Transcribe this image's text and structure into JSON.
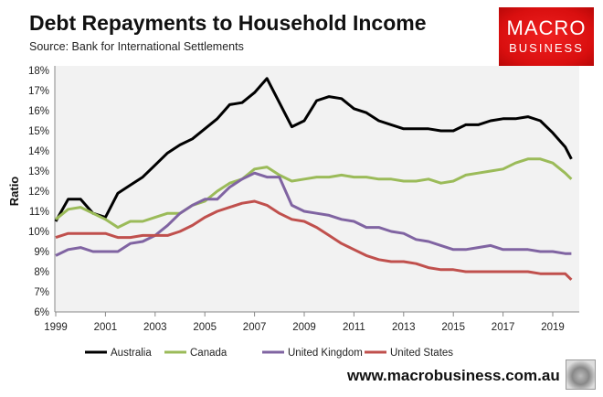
{
  "header": {
    "title": "Debt Repayments to Household Income",
    "subtitle": "Source: Bank for International Settlements"
  },
  "logo": {
    "line1": "MACRO",
    "line2": "BUSINESS",
    "color": "#e01818"
  },
  "footer": {
    "url": "www.macrobusiness.com.au",
    "mascot_icon": "wolf-icon"
  },
  "chart_data": {
    "type": "line",
    "title": "Debt Repayments to Household Income",
    "ylabel": "Ratio",
    "xlabel": "",
    "xlim": [
      1999,
      2020.1
    ],
    "ylim": [
      6,
      18
    ],
    "x_ticks": [
      "1999",
      "2001",
      "2003",
      "2005",
      "2007",
      "2009",
      "2011",
      "2013",
      "2015",
      "2017",
      "2019"
    ],
    "y_ticks": [
      "6%",
      "7%",
      "8%",
      "9%",
      "10%",
      "11%",
      "12%",
      "13%",
      "14%",
      "15%",
      "16%",
      "17%",
      "18%"
    ],
    "grid": false,
    "legend": "bottom",
    "x": [
      1999,
      1999.5,
      2000,
      2000.5,
      2001,
      2001.5,
      2002,
      2002.5,
      2003,
      2003.5,
      2004,
      2004.5,
      2005,
      2005.5,
      2006,
      2006.5,
      2007,
      2007.5,
      2008,
      2008.5,
      2009,
      2009.5,
      2010,
      2010.5,
      2011,
      2011.5,
      2012,
      2012.5,
      2013,
      2013.5,
      2014,
      2014.5,
      2015,
      2015.5,
      2016,
      2016.5,
      2017,
      2017.5,
      2018,
      2018.5,
      2019,
      2019.5,
      2019.75
    ],
    "series": [
      {
        "name": "Australia",
        "color": "#000000",
        "values": [
          10.5,
          11.6,
          11.6,
          10.9,
          10.7,
          11.9,
          12.3,
          12.7,
          13.3,
          13.9,
          14.3,
          14.6,
          15.1,
          15.6,
          16.3,
          16.4,
          16.9,
          17.6,
          16.4,
          15.2,
          15.5,
          16.5,
          16.7,
          16.6,
          16.1,
          15.9,
          15.5,
          15.3,
          15.1,
          15.1,
          15.1,
          15.0,
          15.0,
          15.3,
          15.3,
          15.5,
          15.6,
          15.6,
          15.7,
          15.5,
          14.9,
          14.2,
          13.6
        ]
      },
      {
        "name": "Canada",
        "color": "#9bbb59",
        "values": [
          10.6,
          11.1,
          11.2,
          10.9,
          10.6,
          10.2,
          10.5,
          10.5,
          10.7,
          10.9,
          10.9,
          11.3,
          11.5,
          12.0,
          12.4,
          12.6,
          13.1,
          13.2,
          12.8,
          12.5,
          12.6,
          12.7,
          12.7,
          12.8,
          12.7,
          12.7,
          12.6,
          12.6,
          12.5,
          12.5,
          12.6,
          12.4,
          12.5,
          12.8,
          12.9,
          13.0,
          13.1,
          13.4,
          13.6,
          13.6,
          13.4,
          12.9,
          12.6
        ]
      },
      {
        "name": "United Kingdom",
        "color": "#8064a2",
        "values": [
          8.8,
          9.1,
          9.2,
          9.0,
          9.0,
          9.0,
          9.4,
          9.5,
          9.8,
          10.3,
          10.9,
          11.3,
          11.6,
          11.6,
          12.2,
          12.6,
          12.9,
          12.7,
          12.7,
          11.3,
          11.0,
          10.9,
          10.8,
          10.6,
          10.5,
          10.2,
          10.2,
          10.0,
          9.9,
          9.6,
          9.5,
          9.3,
          9.1,
          9.1,
          9.2,
          9.3,
          9.1,
          9.1,
          9.1,
          9.0,
          9.0,
          8.9,
          8.9
        ]
      },
      {
        "name": "United States",
        "color": "#c0504d",
        "values": [
          9.7,
          9.9,
          9.9,
          9.9,
          9.9,
          9.7,
          9.7,
          9.8,
          9.8,
          9.8,
          10.0,
          10.3,
          10.7,
          11.0,
          11.2,
          11.4,
          11.5,
          11.3,
          10.9,
          10.6,
          10.5,
          10.2,
          9.8,
          9.4,
          9.1,
          8.8,
          8.6,
          8.5,
          8.5,
          8.4,
          8.2,
          8.1,
          8.1,
          8.0,
          8.0,
          8.0,
          8.0,
          8.0,
          8.0,
          7.9,
          7.9,
          7.9,
          7.6
        ]
      }
    ]
  }
}
